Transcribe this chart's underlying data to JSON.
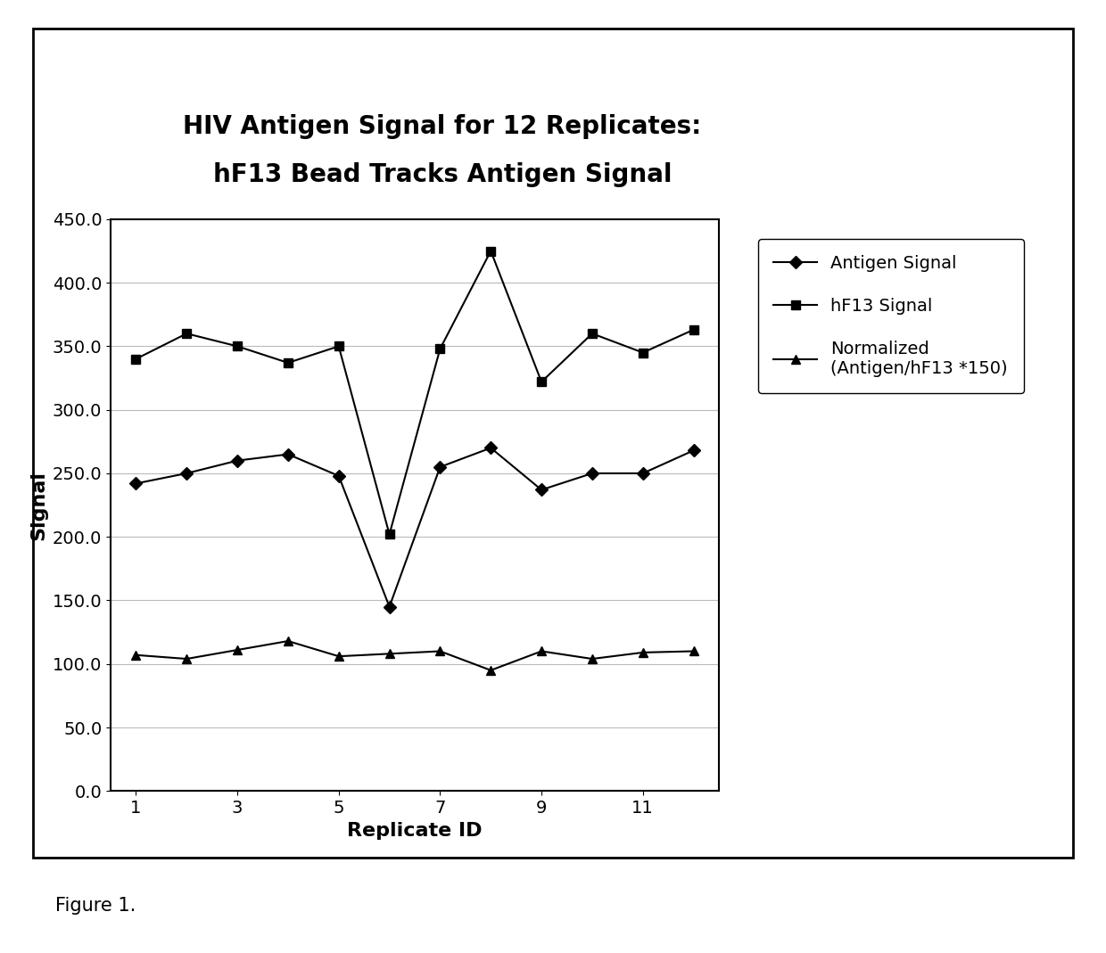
{
  "title_line1": "HIV Antigen Signal for 12 Replicates:",
  "title_line2": "hF13 Bead Tracks Antigen Signal",
  "xlabel": "Replicate ID",
  "ylabel": "Signal",
  "x": [
    1,
    2,
    3,
    4,
    5,
    6,
    7,
    8,
    9,
    10,
    11,
    12
  ],
  "antigen_signal": [
    242,
    250,
    260,
    265,
    248,
    145,
    255,
    270,
    237,
    250,
    250,
    268
  ],
  "hf13_signal": [
    340,
    360,
    350,
    337,
    350,
    202,
    348,
    425,
    322,
    360,
    345,
    363
  ],
  "normalized_signal": [
    107,
    104,
    111,
    118,
    106,
    108,
    110,
    95,
    110,
    104,
    109,
    110
  ],
  "ylim": [
    0,
    450
  ],
  "yticks": [
    0.0,
    50.0,
    100.0,
    150.0,
    200.0,
    250.0,
    300.0,
    350.0,
    400.0,
    450.0
  ],
  "xticks": [
    1,
    3,
    5,
    7,
    9,
    11
  ],
  "line_color": "#000000",
  "background_color": "#ffffff",
  "title_fontsize": 20,
  "label_fontsize": 16,
  "tick_fontsize": 14,
  "legend_fontsize": 14,
  "figure1_fontsize": 15,
  "legend_entries": [
    "Antigen Signal",
    "hF13 Signal",
    "Normalized\n(Antigen/hF13 *150)"
  ]
}
